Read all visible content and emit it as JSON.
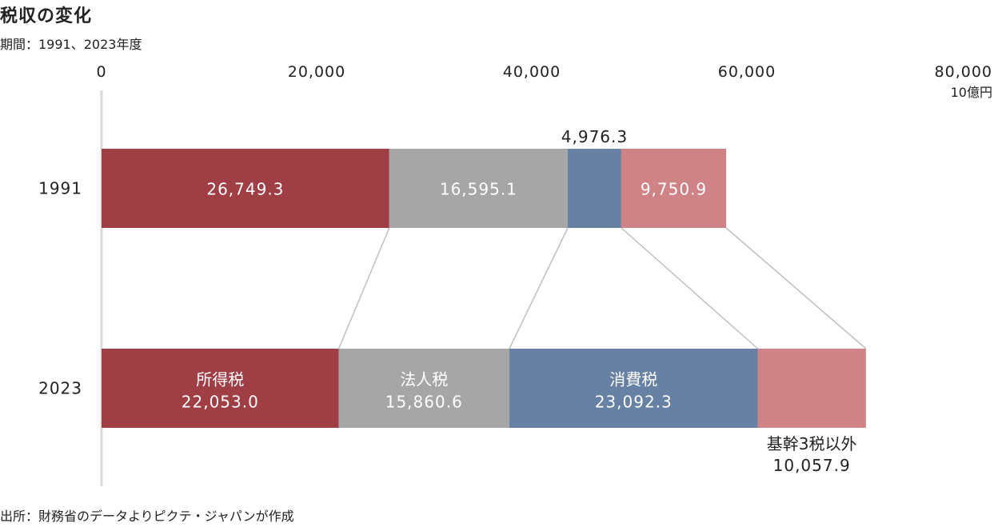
{
  "title": "税収の変化",
  "subtitle": "期間：1991、2023年度",
  "source": "出所：財務省のデータよりピクテ・ジャパンが作成",
  "chart_data": {
    "type": "bar",
    "orientation": "horizontal",
    "stacked": true,
    "categories": [
      "1991",
      "2023"
    ],
    "unit": "10億円",
    "xlim": [
      0,
      80000
    ],
    "x_ticks": [
      0,
      20000,
      40000,
      60000,
      80000
    ],
    "x_tick_labels": [
      "0",
      "20,000",
      "40,000",
      "60,000",
      "80,000"
    ],
    "grid": false,
    "legend": "none",
    "connector_lines": true,
    "series": [
      {
        "name": "所得税",
        "color": "#a03e46",
        "values": [
          26749.3,
          22053.0
        ],
        "labels": [
          "26,749.3",
          "22,053.0"
        ]
      },
      {
        "name": "法人税",
        "color": "#a6a6a6",
        "values": [
          16595.1,
          15860.6
        ],
        "labels": [
          "16,595.1",
          "15,860.6"
        ]
      },
      {
        "name": "消費税",
        "color": "#6681a3",
        "values": [
          4976.3,
          23092.3
        ],
        "labels": [
          "4,976.3",
          "23,092.3"
        ]
      },
      {
        "name": "基幹3税以外",
        "color": "#d08387",
        "values": [
          9750.9,
          10057.9
        ],
        "labels": [
          "9,750.9",
          "10,057.9"
        ]
      }
    ]
  }
}
